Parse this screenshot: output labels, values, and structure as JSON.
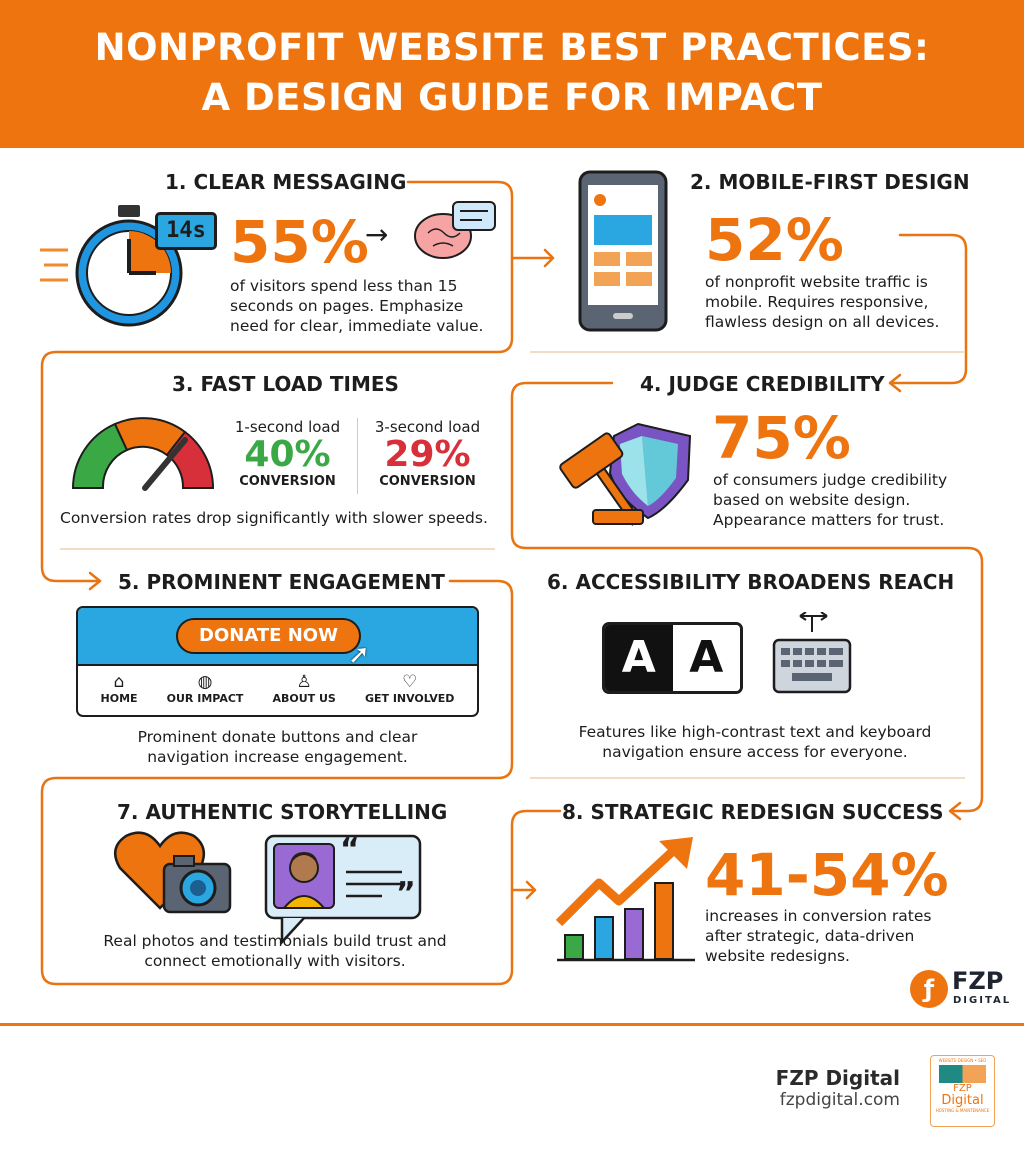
{
  "header": {
    "line1": "NONPROFIT WEBSITE BEST PRACTICES:",
    "line2": "A DESIGN GUIDE FOR IMPACT"
  },
  "colors": {
    "accent": "#ee7410",
    "green": "#3aa845",
    "red": "#d8303a",
    "blue": "#2aa6e0"
  },
  "s1": {
    "title": "1. CLEAR MESSAGING",
    "stat": "55%",
    "timer": "14s",
    "arrow": "→",
    "text": "of visitors spend less than 15 seconds on pages. Emphasize need for clear, immediate value."
  },
  "s2": {
    "title": "2. MOBILE-FIRST DESIGN",
    "stat": "52%",
    "text": "of nonprofit website traffic is mobile. Requires responsive, flawless design on all devices."
  },
  "s3": {
    "title": "3. FAST LOAD TIMES",
    "a_label": "1-second load",
    "a_stat": "40%",
    "a_sub": "CONVERSION",
    "b_label": "3-second load",
    "b_stat": "29%",
    "b_sub": "CONVERSION",
    "caption": "Conversion rates drop significantly with slower speeds."
  },
  "s4": {
    "title": "4. JUDGE CREDIBILITY",
    "stat": "75%",
    "text": "of consumers judge credibility based on website design. Appearance matters for trust."
  },
  "s5": {
    "title": "5. PROMINENT ENGAGEMENT",
    "donate": "DONATE NOW",
    "nav": [
      "HOME",
      "OUR IMPACT",
      "ABOUT US",
      "GET INVOLVED"
    ],
    "caption": "Prominent donate buttons and clear navigation increase engagement."
  },
  "s6": {
    "title": "6. ACCESSIBILITY BROADENS REACH",
    "letters": [
      "A",
      "A"
    ],
    "caption": "Features like high-contrast text and keyboard navigation ensure access for everyone."
  },
  "s7": {
    "title": "7. AUTHENTIC STORYTELLING",
    "quote_open": "“",
    "quote_close": "”",
    "caption": "Real photos and testimonials build trust and connect emotionally with visitors."
  },
  "s8": {
    "title": "8. STRATEGIC REDESIGN SUCCESS",
    "stat": "41-54%",
    "text": "increases in conversion rates after strategic, data-driven website redesigns."
  },
  "logo": {
    "name": "FZP",
    "sub": "DIGITAL"
  },
  "footer": {
    "company": "FZP Digital",
    "url": "fzpdigital.com",
    "badge_top": "WEBSITE DESIGN • SEO",
    "badge_name1": "FZP",
    "badge_name2": "Digital",
    "badge_bottom": "HOSTING & MAINTENANCE"
  }
}
